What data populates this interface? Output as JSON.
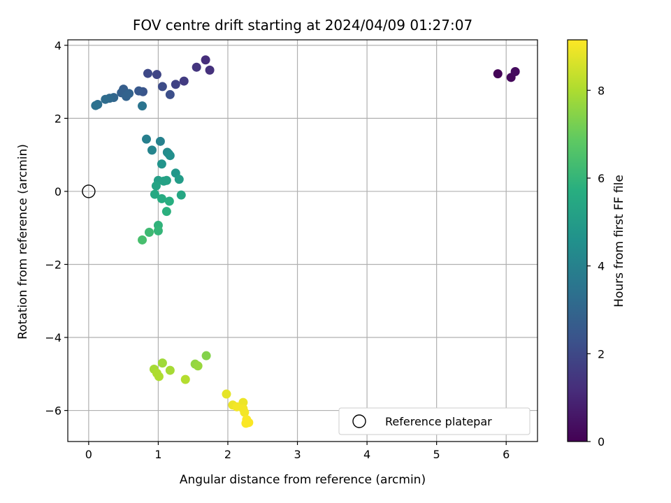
{
  "chart_data": {
    "type": "scatter",
    "title": "FOV centre drift starting at 2024/04/09 01:27:07",
    "xlabel": "Angular distance from reference (arcmin)",
    "ylabel": "Rotation from reference (arcmin)",
    "xlim": [
      -0.3,
      6.45
    ],
    "ylim": [
      -6.85,
      4.15
    ],
    "xticks": [
      0,
      1,
      2,
      3,
      4,
      5,
      6
    ],
    "yticks": [
      -6,
      -4,
      -2,
      0,
      2,
      4
    ],
    "xtick_labels": [
      "0",
      "1",
      "2",
      "3",
      "4",
      "5",
      "6"
    ],
    "ytick_labels": [
      "−6",
      "−4",
      "−2",
      "0",
      "2",
      "4"
    ],
    "grid": true,
    "colormap": "viridis",
    "colorbar": {
      "label": "Hours from first FF file",
      "range": [
        0,
        9.15
      ],
      "ticks": [
        0,
        2,
        4,
        6,
        8
      ],
      "tick_labels": [
        "0",
        "2",
        "4",
        "6",
        "8"
      ]
    },
    "legend": {
      "position": "bottom-right",
      "entries": [
        {
          "label": "Reference platepar",
          "marker": "open-circle"
        }
      ]
    },
    "reference_point": {
      "x": 0,
      "y": 0
    },
    "points": [
      {
        "x": 5.88,
        "y": 3.22,
        "hours": 0.1
      },
      {
        "x": 6.07,
        "y": 3.12,
        "hours": 0.2
      },
      {
        "x": 6.13,
        "y": 3.28,
        "hours": 0.3
      },
      {
        "x": 1.68,
        "y": 3.6,
        "hours": 1.2
      },
      {
        "x": 1.74,
        "y": 3.32,
        "hours": 1.3
      },
      {
        "x": 1.55,
        "y": 3.4,
        "hours": 1.4
      },
      {
        "x": 1.37,
        "y": 3.02,
        "hours": 1.6
      },
      {
        "x": 1.25,
        "y": 2.93,
        "hours": 1.8
      },
      {
        "x": 0.98,
        "y": 3.2,
        "hours": 1.9
      },
      {
        "x": 0.85,
        "y": 3.23,
        "hours": 2.0
      },
      {
        "x": 1.06,
        "y": 2.87,
        "hours": 2.1
      },
      {
        "x": 1.17,
        "y": 2.65,
        "hours": 2.2
      },
      {
        "x": 0.78,
        "y": 2.73,
        "hours": 2.4
      },
      {
        "x": 0.72,
        "y": 2.75,
        "hours": 2.5
      },
      {
        "x": 0.5,
        "y": 2.8,
        "hours": 2.7
      },
      {
        "x": 0.47,
        "y": 2.7,
        "hours": 2.8
      },
      {
        "x": 0.58,
        "y": 2.68,
        "hours": 2.9
      },
      {
        "x": 0.54,
        "y": 2.6,
        "hours": 2.9
      },
      {
        "x": 0.36,
        "y": 2.57,
        "hours": 3.0
      },
      {
        "x": 0.3,
        "y": 2.55,
        "hours": 3.1
      },
      {
        "x": 0.24,
        "y": 2.52,
        "hours": 3.2
      },
      {
        "x": 0.13,
        "y": 2.38,
        "hours": 3.3
      },
      {
        "x": 0.1,
        "y": 2.35,
        "hours": 3.4
      },
      {
        "x": 0.77,
        "y": 2.34,
        "hours": 3.5
      },
      {
        "x": 0.83,
        "y": 1.43,
        "hours": 3.9
      },
      {
        "x": 1.03,
        "y": 1.37,
        "hours": 4.0
      },
      {
        "x": 0.91,
        "y": 1.13,
        "hours": 4.1
      },
      {
        "x": 1.13,
        "y": 1.07,
        "hours": 4.3
      },
      {
        "x": 1.15,
        "y": 1.03,
        "hours": 4.4
      },
      {
        "x": 1.17,
        "y": 0.98,
        "hours": 4.5
      },
      {
        "x": 1.05,
        "y": 0.75,
        "hours": 4.7
      },
      {
        "x": 1.25,
        "y": 0.5,
        "hours": 4.8
      },
      {
        "x": 1.3,
        "y": 0.33,
        "hours": 5.0
      },
      {
        "x": 1.0,
        "y": 0.3,
        "hours": 5.1
      },
      {
        "x": 1.08,
        "y": 0.28,
        "hours": 5.2
      },
      {
        "x": 1.12,
        "y": 0.3,
        "hours": 5.2
      },
      {
        "x": 0.97,
        "y": 0.15,
        "hours": 5.3
      },
      {
        "x": 1.33,
        "y": -0.1,
        "hours": 5.4
      },
      {
        "x": 0.95,
        "y": -0.08,
        "hours": 5.5
      },
      {
        "x": 1.05,
        "y": -0.2,
        "hours": 5.6
      },
      {
        "x": 1.16,
        "y": -0.27,
        "hours": 5.7
      },
      {
        "x": 1.12,
        "y": -0.55,
        "hours": 5.8
      },
      {
        "x": 1.0,
        "y": -0.93,
        "hours": 5.9
      },
      {
        "x": 1.0,
        "y": -1.08,
        "hours": 6.0
      },
      {
        "x": 0.87,
        "y": -1.12,
        "hours": 6.2
      },
      {
        "x": 0.77,
        "y": -1.33,
        "hours": 6.4
      },
      {
        "x": 1.69,
        "y": -4.5,
        "hours": 7.4
      },
      {
        "x": 1.53,
        "y": -4.73,
        "hours": 7.6
      },
      {
        "x": 1.57,
        "y": -4.78,
        "hours": 7.7
      },
      {
        "x": 1.06,
        "y": -4.7,
        "hours": 7.8
      },
      {
        "x": 0.94,
        "y": -4.87,
        "hours": 7.9
      },
      {
        "x": 1.17,
        "y": -4.9,
        "hours": 7.9
      },
      {
        "x": 0.98,
        "y": -4.98,
        "hours": 8.0
      },
      {
        "x": 1.01,
        "y": -5.07,
        "hours": 8.0
      },
      {
        "x": 1.39,
        "y": -5.15,
        "hours": 8.1
      },
      {
        "x": 1.98,
        "y": -5.55,
        "hours": 8.8
      },
      {
        "x": 2.22,
        "y": -5.78,
        "hours": 8.9
      },
      {
        "x": 2.07,
        "y": -5.85,
        "hours": 8.9
      },
      {
        "x": 2.13,
        "y": -5.9,
        "hours": 9.0
      },
      {
        "x": 2.22,
        "y": -5.95,
        "hours": 9.0
      },
      {
        "x": 2.24,
        "y": -6.05,
        "hours": 9.0
      },
      {
        "x": 2.27,
        "y": -6.25,
        "hours": 9.1
      },
      {
        "x": 2.3,
        "y": -6.33,
        "hours": 9.1
      },
      {
        "x": 2.26,
        "y": -6.35,
        "hours": 9.1
      }
    ]
  }
}
